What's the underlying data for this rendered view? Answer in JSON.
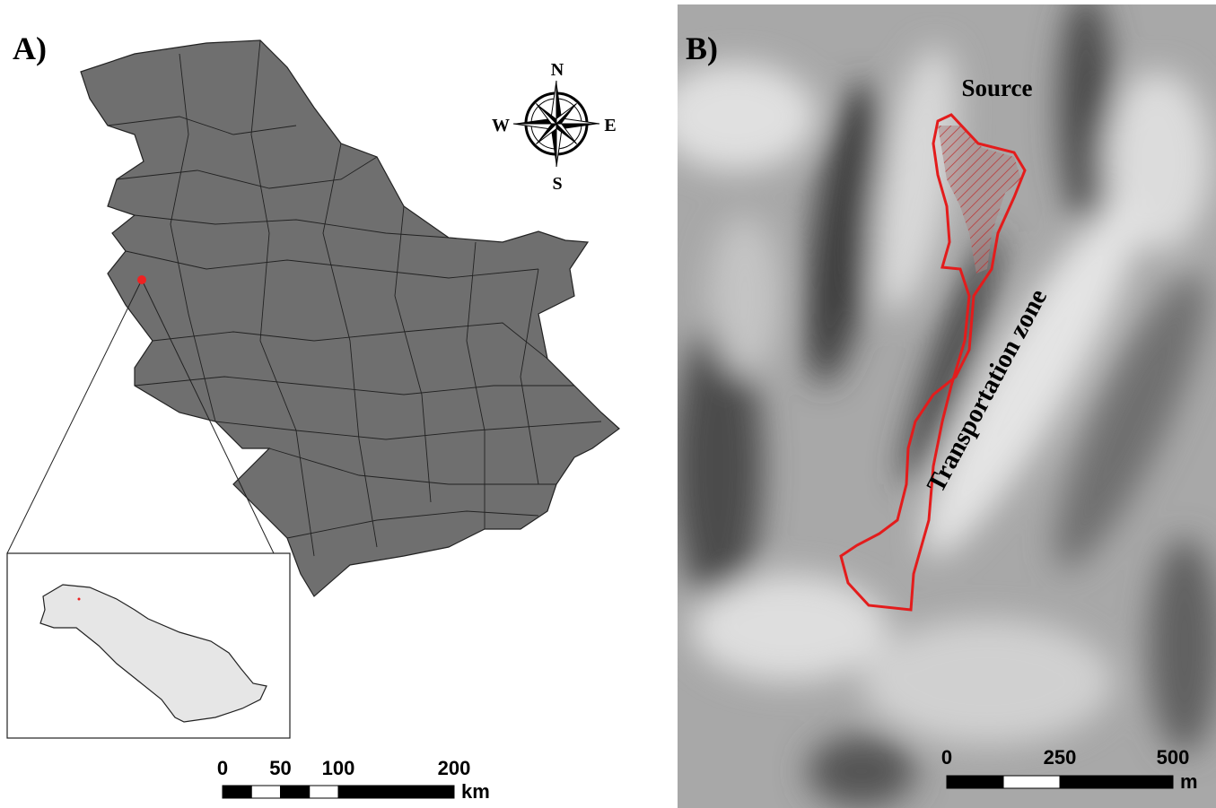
{
  "panel_a": {
    "label": "A)",
    "compass": {
      "north": "N",
      "east": "E",
      "south": "S",
      "west": "W"
    },
    "scale_bar": {
      "ticks": [
        0,
        50,
        100,
        200
      ],
      "unit": "km"
    }
  },
  "panel_b": {
    "label": "B)",
    "annotations": {
      "source": "Source",
      "zone": "Transportation zone"
    },
    "scale_bar": {
      "ticks": [
        0,
        250,
        500
      ],
      "unit": "m"
    }
  }
}
